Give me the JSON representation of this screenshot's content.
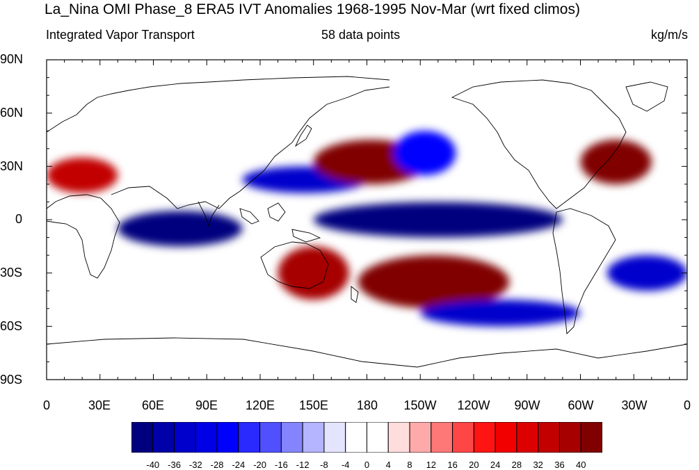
{
  "header": {
    "title": "La_Nina OMI Phase_8 ERA5 IVT Anomalies 1968-1995 Nov-Mar (wrt fixed climos)",
    "left_string": "Integrated Vapor Transport",
    "center_string": "58 data points",
    "right_string": "kg/m/s"
  },
  "axes": {
    "y_labels": [
      "90N",
      "60N",
      "30N",
      "0",
      "30S",
      "60S",
      "90S"
    ],
    "x_labels": [
      "0",
      "30E",
      "60E",
      "90E",
      "120E",
      "150E",
      "180",
      "150W",
      "120W",
      "90W",
      "60W",
      "30W",
      "0"
    ]
  },
  "colorbar": {
    "colors": [
      "#00007f",
      "#0000a8",
      "#0000cc",
      "#0000e6",
      "#0000ff",
      "#2a2aff",
      "#5050ff",
      "#8484ff",
      "#b4b4ff",
      "#e4e4ff",
      "#ffffff",
      "#ffffff",
      "#ffdddd",
      "#ffaaaa",
      "#ff7878",
      "#ff4646",
      "#ff1414",
      "#f20000",
      "#dc0000",
      "#c20000",
      "#a60000",
      "#800000"
    ],
    "labels": [
      "-40",
      "-36",
      "-32",
      "-28",
      "-24",
      "-20",
      "-16",
      "-12",
      "-8",
      "-4",
      "0",
      "4",
      "8",
      "12",
      "16",
      "20",
      "24",
      "28",
      "32",
      "36",
      "40"
    ]
  },
  "anomaly_fields": [
    {
      "region": "Equatorial Pacific",
      "sign": "negative",
      "lon": [
        150,
        290
      ],
      "lat": [
        -10,
        10
      ],
      "strength": 40
    },
    {
      "region": "Equatorial Indian Ocean",
      "sign": "negative",
      "lon": [
        40,
        110
      ],
      "lat": [
        -15,
        5
      ],
      "strength": 40
    },
    {
      "region": "Western Pacific 25N band",
      "sign": "negative",
      "lon": [
        110,
        180
      ],
      "lat": [
        15,
        30
      ],
      "strength": 32
    },
    {
      "region": "North Pacific jet",
      "sign": "positive",
      "lon": [
        150,
        215
      ],
      "lat": [
        20,
        45
      ],
      "strength": 40
    },
    {
      "region": "Gulf of Alaska",
      "sign": "negative",
      "lon": [
        195,
        230
      ],
      "lat": [
        25,
        50
      ],
      "strength": 24
    },
    {
      "region": "North Atlantic",
      "sign": "positive",
      "lon": [
        300,
        340
      ],
      "lat": [
        20,
        45
      ],
      "strength": 40
    },
    {
      "region": "North Africa / Arabia",
      "sign": "positive",
      "lon": [
        0,
        40
      ],
      "lat": [
        15,
        35
      ],
      "strength": 32
    },
    {
      "region": "Australia / Tasman",
      "sign": "positive",
      "lon": [
        130,
        170
      ],
      "lat": [
        -45,
        -15
      ],
      "strength": 36
    },
    {
      "region": "South Pacific Convergence Zone",
      "sign": "positive",
      "lon": [
        175,
        260
      ],
      "lat": [
        -50,
        -20
      ],
      "strength": 40
    },
    {
      "region": "Southern Ocean Pacific",
      "sign": "negative",
      "lon": [
        210,
        300
      ],
      "lat": [
        -60,
        -45
      ],
      "strength": 32
    },
    {
      "region": "South Atlantic",
      "sign": "negative",
      "lon": [
        315,
        360
      ],
      "lat": [
        -40,
        -20
      ],
      "strength": 32
    }
  ]
}
